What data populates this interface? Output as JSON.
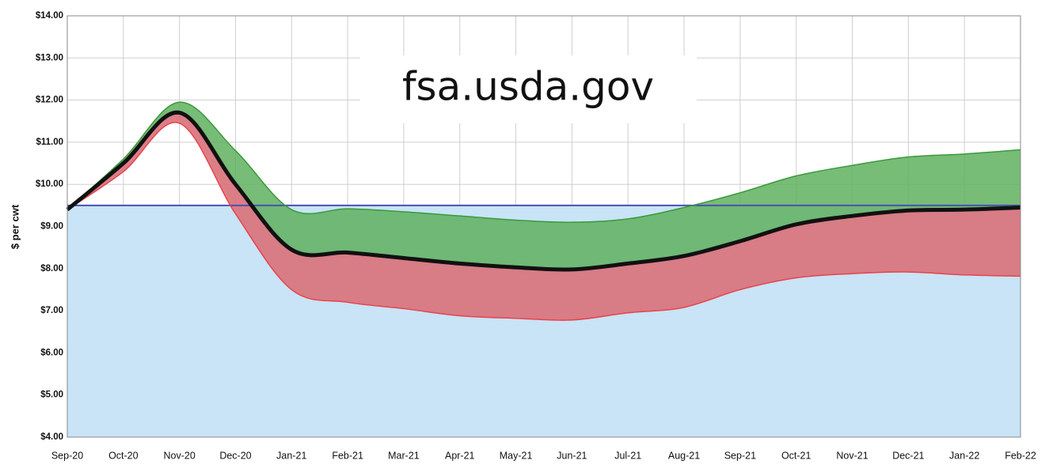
{
  "chart_data": {
    "type": "area",
    "annotation": "fsa.usda.gov",
    "ylabel": "$ per cwt",
    "categories": [
      "Sep-20",
      "Oct-20",
      "Nov-20",
      "Dec-20",
      "Jan-21",
      "Feb-21",
      "Mar-21",
      "Apr-21",
      "May-21",
      "Jun-21",
      "Jul-21",
      "Aug-21",
      "Sep-21",
      "Oct-21",
      "Nov-21",
      "Dec-21",
      "Jan-22",
      "Feb-22"
    ],
    "series": [
      {
        "color": "#3a9a3a",
        "fill": "#5fb05f",
        "values": [
          9.4,
          10.6,
          11.95,
          10.8,
          9.4,
          9.42,
          9.35,
          9.25,
          9.15,
          9.1,
          9.18,
          9.45,
          9.8,
          10.2,
          10.45,
          10.65,
          10.72,
          10.82
        ]
      },
      {
        "color": "#111111",
        "values": [
          9.4,
          10.5,
          11.7,
          10.0,
          8.45,
          8.38,
          8.25,
          8.12,
          8.03,
          7.98,
          8.12,
          8.3,
          8.65,
          9.05,
          9.25,
          9.38,
          9.4,
          9.45
        ]
      },
      {
        "color": "#e8434b",
        "fill": "#d9707a",
        "values": [
          9.4,
          10.3,
          11.45,
          9.3,
          7.5,
          7.2,
          7.05,
          6.88,
          6.82,
          6.78,
          6.95,
          7.08,
          7.5,
          7.78,
          7.88,
          7.92,
          7.85,
          7.82
        ]
      },
      {
        "color": "#4a52b0",
        "fill": "#c8e4f6",
        "values": [
          9.5,
          9.5,
          9.5,
          9.5,
          9.5,
          9.5,
          9.5,
          9.5,
          9.5,
          9.5,
          9.5,
          9.5,
          9.5,
          9.5,
          9.5,
          9.5,
          9.5,
          9.5
        ]
      }
    ],
    "ylim": [
      4,
      14
    ],
    "yticks": [
      {
        "value": 4,
        "label": "$4.00"
      },
      {
        "value": 5,
        "label": "$5.00"
      },
      {
        "value": 6,
        "label": "$6.00"
      },
      {
        "value": 7,
        "label": "$7.00"
      },
      {
        "value": 8,
        "label": "$8.00"
      },
      {
        "value": 9,
        "label": "$9.00"
      },
      {
        "value": 10,
        "label": "$10.00"
      },
      {
        "value": 11,
        "label": "$11.00"
      },
      {
        "value": 12,
        "label": "$12.00"
      },
      {
        "value": 13,
        "label": "$13.00"
      },
      {
        "value": 14,
        "label": "$14.00"
      }
    ],
    "grid": true
  }
}
